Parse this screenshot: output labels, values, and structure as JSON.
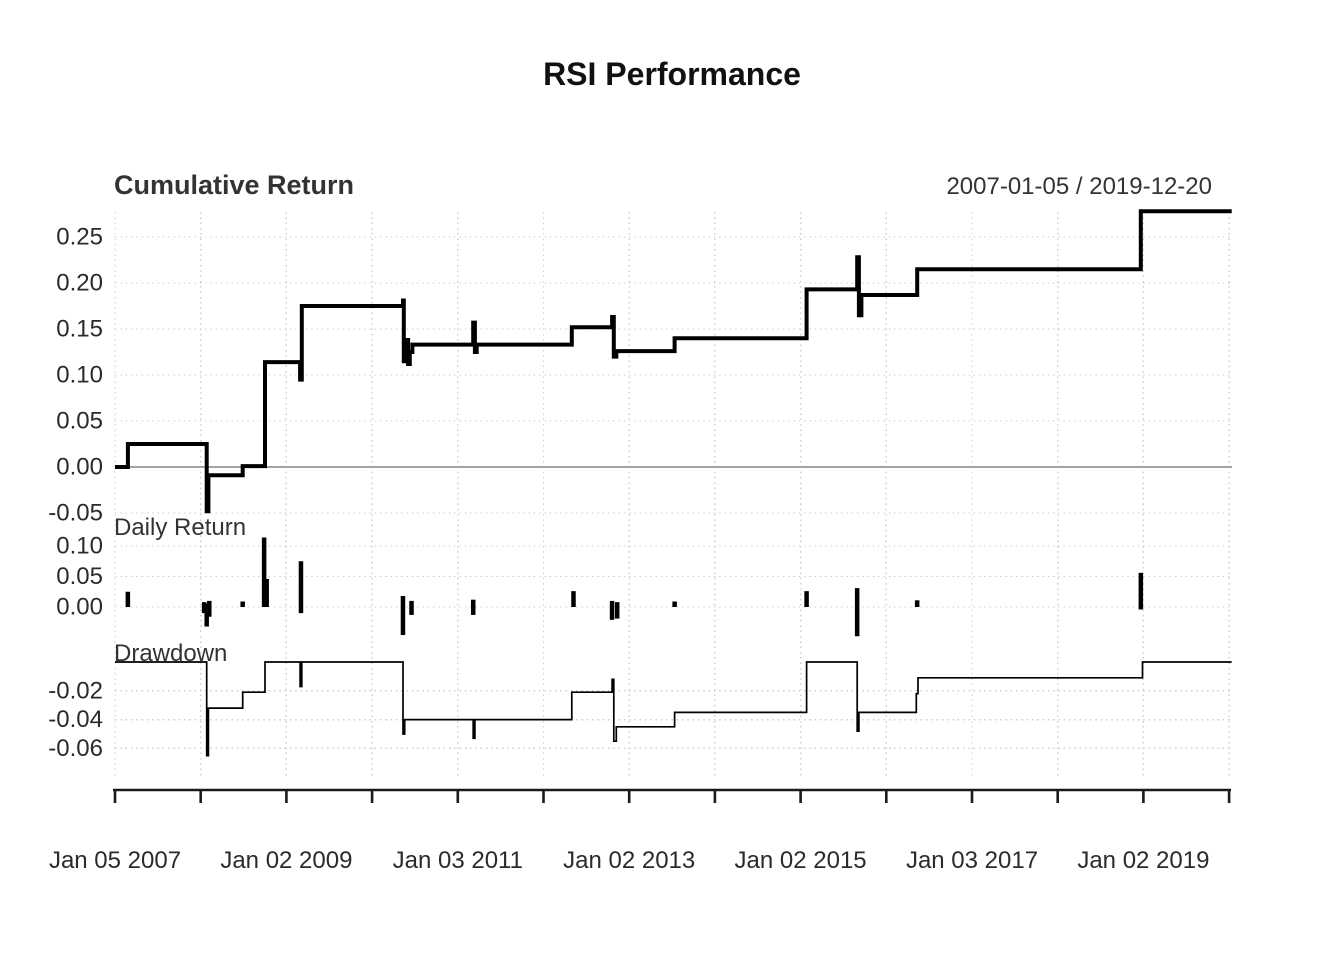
{
  "title": "RSI Performance",
  "colors": {
    "series": "#000000",
    "grid": "#cfcfcf",
    "zero_line": "#a3a3a3",
    "axis": "#1a1a1a",
    "text": "#2b2b2b"
  },
  "chart_data": {
    "type": "line",
    "title": "RSI Performance",
    "x_axis": {
      "tick_years": [
        2007,
        2008,
        2009,
        2010,
        2011,
        2012,
        2013,
        2014,
        2015,
        2016,
        2017,
        2018,
        2019,
        2020
      ],
      "labels": [
        {
          "year": 2007,
          "text": "Jan 05 2007"
        },
        {
          "year": 2009,
          "text": "Jan 02 2009"
        },
        {
          "year": 2011,
          "text": "Jan 03 2011"
        },
        {
          "year": 2013,
          "text": "Jan 02 2013"
        },
        {
          "year": 2015,
          "text": "Jan 02 2015"
        },
        {
          "year": 2017,
          "text": "Jan 03 2017"
        },
        {
          "year": 2019,
          "text": "Jan 02 2019"
        }
      ]
    },
    "panels": [
      {
        "name": "Cumulative Return",
        "annotation": "2007-01-05 / 2019-12-20",
        "style": "step-line-thick",
        "zero_line": true,
        "yticks": [
          0.25,
          0.2,
          0.15,
          0.1,
          0.05,
          0.0,
          -0.05
        ],
        "ylim": [
          -0.063,
          0.28
        ],
        "points": [
          [
            2007.0,
            0.0
          ],
          [
            2007.15,
            0.0
          ],
          [
            2007.15,
            0.025
          ],
          [
            2008.07,
            0.025
          ],
          [
            2008.07,
            -0.048
          ],
          [
            2008.09,
            -0.048
          ],
          [
            2008.09,
            -0.009
          ],
          [
            2008.49,
            -0.009
          ],
          [
            2008.49,
            0.001
          ],
          [
            2008.75,
            0.001
          ],
          [
            2008.75,
            0.114
          ],
          [
            2009.16,
            0.114
          ],
          [
            2009.16,
            0.095
          ],
          [
            2009.18,
            0.095
          ],
          [
            2009.18,
            0.175
          ],
          [
            2010.36,
            0.175
          ],
          [
            2010.36,
            0.181
          ],
          [
            2010.37,
            0.181
          ],
          [
            2010.37,
            0.115
          ],
          [
            2010.39,
            0.115
          ],
          [
            2010.39,
            0.138
          ],
          [
            2010.42,
            0.138
          ],
          [
            2010.42,
            0.112
          ],
          [
            2010.44,
            0.112
          ],
          [
            2010.44,
            0.125
          ],
          [
            2010.47,
            0.125
          ],
          [
            2010.47,
            0.133
          ],
          [
            2011.18,
            0.133
          ],
          [
            2011.18,
            0.157
          ],
          [
            2011.2,
            0.157
          ],
          [
            2011.2,
            0.125
          ],
          [
            2011.22,
            0.125
          ],
          [
            2011.22,
            0.133
          ],
          [
            2012.33,
            0.133
          ],
          [
            2012.33,
            0.152
          ],
          [
            2012.8,
            0.152
          ],
          [
            2012.8,
            0.163
          ],
          [
            2012.82,
            0.163
          ],
          [
            2012.82,
            0.12
          ],
          [
            2012.85,
            0.12
          ],
          [
            2012.85,
            0.126
          ],
          [
            2013.53,
            0.126
          ],
          [
            2013.53,
            0.14
          ],
          [
            2015.07,
            0.14
          ],
          [
            2015.07,
            0.193
          ],
          [
            2015.66,
            0.193
          ],
          [
            2015.66,
            0.228
          ],
          [
            2015.68,
            0.228
          ],
          [
            2015.68,
            0.165
          ],
          [
            2015.71,
            0.165
          ],
          [
            2015.71,
            0.187
          ],
          [
            2016.36,
            0.187
          ],
          [
            2016.36,
            0.215
          ],
          [
            2018.97,
            0.215
          ],
          [
            2018.97,
            0.278
          ],
          [
            2020.03,
            0.278
          ]
        ]
      },
      {
        "name": "Daily Return",
        "style": "vertical-bars",
        "yticks": [
          0.1,
          0.05,
          0.0
        ],
        "ylim": [
          -0.059,
          0.115
        ],
        "bars": [
          [
            2007.15,
            0.0,
            0.025
          ],
          [
            2008.04,
            -0.01,
            0.008
          ],
          [
            2008.07,
            -0.032,
            0.006
          ],
          [
            2008.1,
            -0.016,
            0.01
          ],
          [
            2008.49,
            0.0,
            0.009
          ],
          [
            2008.74,
            0.0,
            0.114
          ],
          [
            2008.77,
            0.0,
            0.046
          ],
          [
            2009.17,
            -0.01,
            0.075
          ],
          [
            2010.36,
            -0.046,
            0.018
          ],
          [
            2010.46,
            -0.013,
            0.01
          ],
          [
            2011.18,
            -0.013,
            0.012
          ],
          [
            2012.35,
            0.0,
            0.026
          ],
          [
            2012.8,
            -0.021,
            0.01
          ],
          [
            2012.86,
            -0.019,
            0.008
          ],
          [
            2013.53,
            0.0,
            0.009
          ],
          [
            2015.07,
            0.0,
            0.026
          ],
          [
            2015.66,
            -0.048,
            0.031
          ],
          [
            2016.36,
            0.0,
            0.011
          ],
          [
            2018.97,
            -0.004,
            0.056
          ]
        ]
      },
      {
        "name": "Drawdown",
        "style": "step-line-thin",
        "yticks": [
          -0.02,
          -0.04,
          -0.06
        ],
        "ylim": [
          -0.08,
          0.0
        ],
        "points": [
          [
            2007.0,
            0.0
          ],
          [
            2008.07,
            0.0
          ],
          [
            2008.07,
            -0.065
          ],
          [
            2008.09,
            -0.065
          ],
          [
            2008.09,
            -0.032
          ],
          [
            2008.49,
            -0.032
          ],
          [
            2008.49,
            -0.021
          ],
          [
            2008.75,
            -0.021
          ],
          [
            2008.75,
            0.0
          ],
          [
            2009.16,
            0.0
          ],
          [
            2009.16,
            -0.017
          ],
          [
            2009.18,
            -0.017
          ],
          [
            2009.18,
            0.0
          ],
          [
            2010.36,
            0.0
          ],
          [
            2010.36,
            -0.05
          ],
          [
            2010.38,
            -0.05
          ],
          [
            2010.38,
            -0.04
          ],
          [
            2011.18,
            -0.04
          ],
          [
            2011.18,
            -0.053
          ],
          [
            2011.2,
            -0.053
          ],
          [
            2011.2,
            -0.04
          ],
          [
            2012.33,
            -0.04
          ],
          [
            2012.33,
            -0.021
          ],
          [
            2012.8,
            -0.021
          ],
          [
            2012.8,
            -0.012
          ],
          [
            2012.82,
            -0.012
          ],
          [
            2012.82,
            -0.055
          ],
          [
            2012.85,
            -0.055
          ],
          [
            2012.85,
            -0.045
          ],
          [
            2013.53,
            -0.045
          ],
          [
            2013.53,
            -0.035
          ],
          [
            2015.07,
            -0.035
          ],
          [
            2015.07,
            0.0
          ],
          [
            2015.66,
            0.0
          ],
          [
            2015.66,
            -0.048
          ],
          [
            2015.68,
            -0.048
          ],
          [
            2015.68,
            -0.035
          ],
          [
            2016.35,
            -0.035
          ],
          [
            2016.35,
            -0.022
          ],
          [
            2016.37,
            -0.022
          ],
          [
            2016.37,
            -0.011
          ],
          [
            2018.99,
            -0.011
          ],
          [
            2018.99,
            0.0
          ],
          [
            2020.03,
            0.0
          ]
        ]
      }
    ]
  }
}
